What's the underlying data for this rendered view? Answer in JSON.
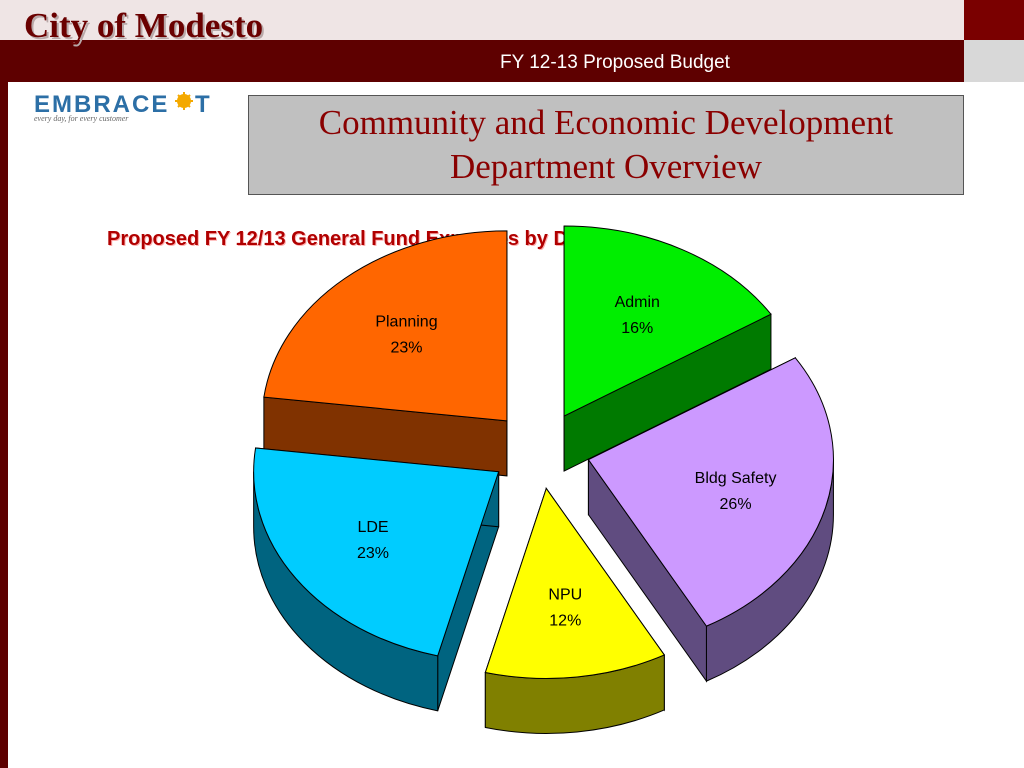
{
  "header": {
    "city_title": "City of Modesto",
    "budget_subtitle": "FY 12-13 Proposed Budget"
  },
  "logo": {
    "word": "EMBRACE IT",
    "tagline": "every day, for every customer"
  },
  "slide_title": {
    "line1": "Community and Economic Development",
    "line2": "Department Overview"
  },
  "chart_data": {
    "type": "pie",
    "title": "Proposed FY 12/13 General Fund Expenses by Division",
    "unit": "%",
    "slices": [
      {
        "name": "Admin",
        "value": 16,
        "top_color": "#00ee00",
        "side_color": "#007a00"
      },
      {
        "name": "Bldg Safety",
        "value": 26,
        "top_color": "#cc99ff",
        "side_color": "#604c80"
      },
      {
        "name": "NPU",
        "value": 12,
        "top_color": "#ffff00",
        "side_color": "#808000"
      },
      {
        "name": "LDE",
        "value": 23,
        "top_color": "#00ccff",
        "side_color": "#006480"
      },
      {
        "name": "Planning",
        "value": 23,
        "top_color": "#ff6600",
        "side_color": "#803200"
      }
    ]
  }
}
